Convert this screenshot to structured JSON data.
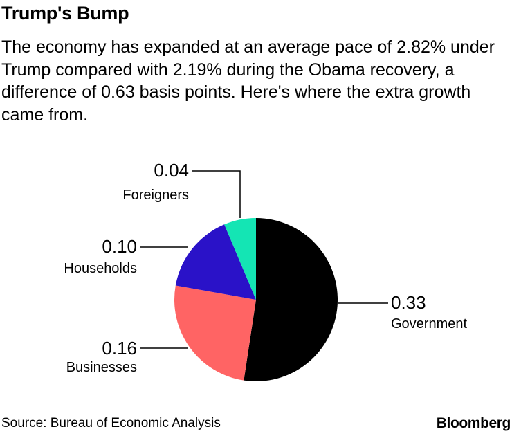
{
  "header": {
    "title": "Trump's Bump",
    "subtitle": "The economy has expanded at an average pace of 2.82% under Trump compared with 2.19% during the Obama recovery, a difference of 0.63 basis points. Here's where the extra growth came from."
  },
  "chart_data": {
    "type": "pie",
    "title": "Trump's Bump",
    "unit": "basis points",
    "total": 0.63,
    "slices": [
      {
        "key": "government",
        "name": "Government",
        "value": 0.33,
        "display": "0.33",
        "color": "#000000"
      },
      {
        "key": "businesses",
        "name": "Businesses",
        "value": 0.16,
        "display": "0.16",
        "color": "#ff6464"
      },
      {
        "key": "households",
        "name": "Households",
        "value": 0.1,
        "display": "0.10",
        "color": "#2a12c8"
      },
      {
        "key": "foreigners",
        "name": "Foreigners",
        "value": 0.04,
        "display": "0.04",
        "color": "#14e5b4"
      }
    ],
    "start": "12 o'clock",
    "direction": "clockwise"
  },
  "footer": {
    "source": "Source: Bureau of Economic Analysis",
    "brand": "Bloomberg"
  }
}
